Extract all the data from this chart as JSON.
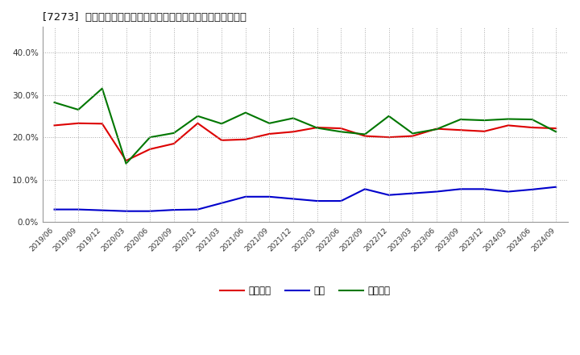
{
  "title": "[7273]  売上債権、在庫、買入債務の総資産に対する比率の推移",
  "x_labels": [
    "2019/06",
    "2019/09",
    "2019/12",
    "2020/03",
    "2020/06",
    "2020/09",
    "2020/12",
    "2021/03",
    "2021/06",
    "2021/09",
    "2021/12",
    "2022/03",
    "2022/06",
    "2022/09",
    "2022/12",
    "2023/03",
    "2023/06",
    "2023/09",
    "2023/12",
    "2024/03",
    "2024/06",
    "2024/09"
  ],
  "uriage": [
    0.228,
    0.233,
    0.232,
    0.145,
    0.172,
    0.185,
    0.233,
    0.193,
    0.195,
    0.208,
    0.213,
    0.223,
    0.221,
    0.203,
    0.2,
    0.203,
    0.22,
    0.217,
    0.214,
    0.228,
    0.223,
    0.221
  ],
  "zaiko": [
    0.03,
    0.03,
    0.028,
    0.026,
    0.026,
    0.029,
    0.03,
    0.045,
    0.06,
    0.06,
    0.055,
    0.05,
    0.05,
    0.078,
    0.064,
    0.068,
    0.072,
    0.078,
    0.078,
    0.072,
    0.077,
    0.083
  ],
  "kaiire": [
    0.282,
    0.265,
    0.315,
    0.138,
    0.2,
    0.21,
    0.25,
    0.232,
    0.258,
    0.233,
    0.245,
    0.222,
    0.213,
    0.207,
    0.25,
    0.209,
    0.219,
    0.242,
    0.24,
    0.243,
    0.242,
    0.213
  ],
  "color_uriage": "#dd0000",
  "color_zaiko": "#0000cc",
  "color_kaiire": "#007700",
  "ylim_min": 0.0,
  "ylim_max": 0.46,
  "yticks": [
    0.0,
    0.1,
    0.2,
    0.3,
    0.4
  ],
  "legend_label_uriage": "売上債権",
  "legend_label_zaiko": "在庫",
  "legend_label_kaiire": "買入債務",
  "background_color": "#ffffff",
  "plot_bg_color": "#ffffff",
  "grid_color": "#aaaaaa"
}
